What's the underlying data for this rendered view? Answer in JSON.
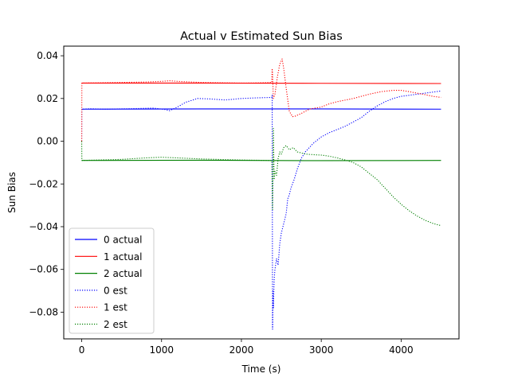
{
  "chart_data": {
    "type": "line",
    "title": "Actual v Estimated Sun Bias",
    "xlabel": "Time (s)",
    "ylabel": "Sun Bias",
    "xlim": [
      -225,
      4725
    ],
    "ylim": [
      -0.0925,
      0.0445
    ],
    "xticks": [
      0,
      1000,
      2000,
      3000,
      4000
    ],
    "xtick_labels": [
      "0",
      "1000",
      "2000",
      "3000",
      "4000"
    ],
    "yticks": [
      0.04,
      0.02,
      0.0,
      -0.02,
      -0.04,
      -0.06,
      -0.08
    ],
    "ytick_labels": [
      "0.04",
      "0.02",
      "0.00",
      "−0.02",
      "−0.04",
      "−0.06",
      "−0.08"
    ],
    "grid": false,
    "legend_position": "lower-left",
    "series": [
      {
        "name": "0 actual",
        "color": "#0000ff",
        "style": "solid",
        "points": [
          [
            0,
            0.015
          ],
          [
            1500,
            0.0151
          ],
          [
            3000,
            0.0151
          ],
          [
            4500,
            0.015
          ]
        ]
      },
      {
        "name": "1 actual",
        "color": "#ff0000",
        "style": "solid",
        "points": [
          [
            0,
            0.0272
          ],
          [
            1500,
            0.0272
          ],
          [
            3000,
            0.0271
          ],
          [
            4500,
            0.027
          ]
        ]
      },
      {
        "name": "2 actual",
        "color": "#008000",
        "style": "solid",
        "points": [
          [
            0,
            -0.009
          ],
          [
            1500,
            -0.0089
          ],
          [
            3000,
            -0.0091
          ],
          [
            4500,
            -0.009
          ]
        ]
      },
      {
        "name": "0 est",
        "color": "#0000ff",
        "style": "dotted",
        "points": [
          [
            0,
            0.0
          ],
          [
            2,
            0.015
          ],
          [
            100,
            0.0152
          ],
          [
            300,
            0.015
          ],
          [
            600,
            0.0152
          ],
          [
            900,
            0.0155
          ],
          [
            1050,
            0.0148
          ],
          [
            1100,
            0.0143
          ],
          [
            1200,
            0.016
          ],
          [
            1300,
            0.0182
          ],
          [
            1450,
            0.02
          ],
          [
            1600,
            0.0198
          ],
          [
            1800,
            0.0193
          ],
          [
            2000,
            0.02
          ],
          [
            2200,
            0.0203
          ],
          [
            2380,
            0.0205
          ],
          [
            2385,
            0.0215
          ],
          [
            2390,
            -0.088
          ],
          [
            2395,
            -0.07
          ],
          [
            2400,
            -0.078
          ],
          [
            2410,
            -0.065
          ],
          [
            2420,
            -0.06
          ],
          [
            2440,
            -0.055
          ],
          [
            2460,
            -0.058
          ],
          [
            2480,
            -0.048
          ],
          [
            2500,
            -0.043
          ],
          [
            2520,
            -0.04
          ],
          [
            2540,
            -0.037
          ],
          [
            2560,
            -0.034
          ],
          [
            2580,
            -0.027
          ],
          [
            2600,
            -0.025
          ],
          [
            2620,
            -0.022
          ],
          [
            2660,
            -0.018
          ],
          [
            2700,
            -0.013
          ],
          [
            2750,
            -0.008
          ],
          [
            2800,
            -0.005
          ],
          [
            2900,
            -0.001
          ],
          [
            3000,
            0.002
          ],
          [
            3100,
            0.004
          ],
          [
            3200,
            0.0055
          ],
          [
            3300,
            0.007
          ],
          [
            3400,
            0.009
          ],
          [
            3500,
            0.011
          ],
          [
            3600,
            0.014
          ],
          [
            3700,
            0.0165
          ],
          [
            3800,
            0.0185
          ],
          [
            3900,
            0.02
          ],
          [
            4000,
            0.021
          ],
          [
            4100,
            0.0215
          ],
          [
            4200,
            0.022
          ],
          [
            4300,
            0.0225
          ],
          [
            4400,
            0.023
          ],
          [
            4500,
            0.0235
          ]
        ]
      },
      {
        "name": "1 est",
        "color": "#ff0000",
        "style": "dotted",
        "points": [
          [
            0,
            0.0
          ],
          [
            2,
            0.0272
          ],
          [
            200,
            0.0273
          ],
          [
            500,
            0.0275
          ],
          [
            800,
            0.0277
          ],
          [
            1000,
            0.028
          ],
          [
            1100,
            0.0283
          ],
          [
            1200,
            0.028
          ],
          [
            1500,
            0.0275
          ],
          [
            2000,
            0.0272
          ],
          [
            2200,
            0.0273
          ],
          [
            2380,
            0.0275
          ],
          [
            2385,
            0.034
          ],
          [
            2390,
            0.032
          ],
          [
            2400,
            0.02
          ],
          [
            2420,
            0.022
          ],
          [
            2450,
            0.03
          ],
          [
            2480,
            0.036
          ],
          [
            2510,
            0.0385
          ],
          [
            2530,
            0.034
          ],
          [
            2560,
            0.025
          ],
          [
            2600,
            0.014
          ],
          [
            2640,
            0.0115
          ],
          [
            2680,
            0.0118
          ],
          [
            2750,
            0.013
          ],
          [
            2850,
            0.015
          ],
          [
            3000,
            0.016
          ],
          [
            3100,
            0.0175
          ],
          [
            3200,
            0.0185
          ],
          [
            3400,
            0.02
          ],
          [
            3600,
            0.022
          ],
          [
            3750,
            0.0232
          ],
          [
            3900,
            0.0238
          ],
          [
            4000,
            0.0238
          ],
          [
            4100,
            0.0232
          ],
          [
            4200,
            0.0225
          ],
          [
            4300,
            0.0218
          ],
          [
            4400,
            0.021
          ],
          [
            4500,
            0.0205
          ]
        ]
      },
      {
        "name": "2 est",
        "color": "#008000",
        "style": "dotted",
        "points": [
          [
            0,
            0.0
          ],
          [
            2,
            -0.009
          ],
          [
            200,
            -0.0088
          ],
          [
            500,
            -0.0085
          ],
          [
            800,
            -0.0078
          ],
          [
            1000,
            -0.0075
          ],
          [
            1200,
            -0.0078
          ],
          [
            1500,
            -0.0083
          ],
          [
            2000,
            -0.0088
          ],
          [
            2380,
            -0.009
          ],
          [
            2390,
            -0.032
          ],
          [
            2395,
            -0.02
          ],
          [
            2400,
            0.006
          ],
          [
            2410,
            -0.018
          ],
          [
            2420,
            -0.014
          ],
          [
            2440,
            -0.016
          ],
          [
            2460,
            -0.008
          ],
          [
            2480,
            -0.005
          ],
          [
            2500,
            -0.006
          ],
          [
            2530,
            -0.003
          ],
          [
            2560,
            -0.002
          ],
          [
            2600,
            -0.004
          ],
          [
            2650,
            -0.003
          ],
          [
            2700,
            -0.005
          ],
          [
            2800,
            -0.006
          ],
          [
            2900,
            -0.0063
          ],
          [
            3000,
            -0.0065
          ],
          [
            3100,
            -0.007
          ],
          [
            3200,
            -0.0078
          ],
          [
            3300,
            -0.0088
          ],
          [
            3400,
            -0.01
          ],
          [
            3500,
            -0.012
          ],
          [
            3600,
            -0.015
          ],
          [
            3700,
            -0.018
          ],
          [
            3800,
            -0.022
          ],
          [
            3900,
            -0.026
          ],
          [
            4000,
            -0.0295
          ],
          [
            4100,
            -0.0325
          ],
          [
            4200,
            -0.035
          ],
          [
            4300,
            -0.037
          ],
          [
            4400,
            -0.0385
          ],
          [
            4500,
            -0.0395
          ]
        ]
      }
    ]
  }
}
